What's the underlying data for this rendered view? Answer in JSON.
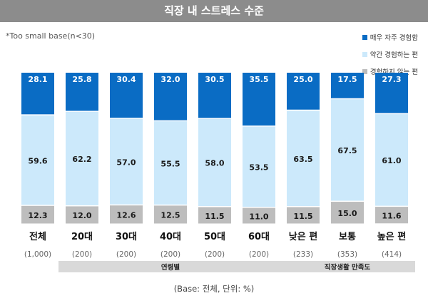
{
  "chart_data": {
    "type": "bar",
    "stacked": true,
    "title": "직장 내 스트레스 수준",
    "note": "*Too small base(n<30)",
    "base_note": "(Base: 전체, 단위: %)",
    "categories": [
      "전체",
      "20대",
      "30대",
      "40대",
      "50대",
      "60대",
      "낮은 편",
      "보통",
      "높은 편"
    ],
    "bases": [
      "(1,000)",
      "(200)",
      "(200)",
      "(200)",
      "(200)",
      "(200)",
      "(233)",
      "(353)",
      "(414)"
    ],
    "series": [
      {
        "name": "매우 자주 경험함",
        "color": "#0a6cc4",
        "values": [
          28.1,
          25.8,
          30.4,
          32.0,
          30.5,
          35.5,
          25.0,
          17.5,
          27.3
        ]
      },
      {
        "name": "약간 경험하는 편",
        "color": "#cce9fb",
        "values": [
          59.6,
          62.2,
          57.0,
          55.5,
          58.0,
          53.5,
          63.5,
          67.5,
          61.0
        ]
      },
      {
        "name": "경험하지 않는 편",
        "color": "#bdbdbd",
        "values": [
          12.3,
          12.0,
          12.6,
          12.5,
          11.5,
          11.0,
          11.5,
          15.0,
          11.6
        ]
      }
    ],
    "groups": [
      {
        "label": "연령별",
        "from": 1,
        "to": 5
      },
      {
        "label": "직장생활 만족도",
        "from": 6,
        "to": 8
      }
    ],
    "ylim": [
      0,
      100
    ]
  }
}
